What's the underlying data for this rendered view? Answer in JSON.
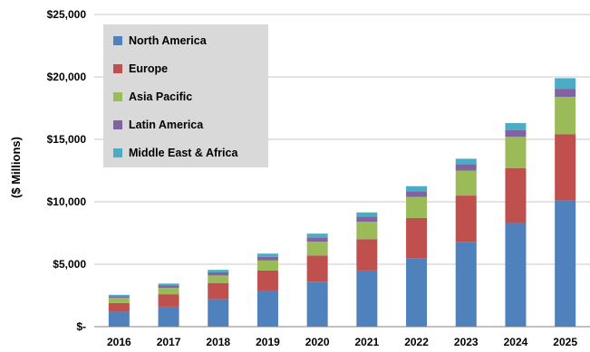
{
  "chart_data": {
    "type": "bar",
    "stacked": true,
    "title": "",
    "xlabel": "",
    "ylabel": "($ Millions)",
    "ylim": [
      0,
      25000
    ],
    "yticks": [
      0,
      5000,
      10000,
      15000,
      20000,
      25000
    ],
    "ytick_labels": [
      "$-",
      "$5,000",
      "$10,000",
      "$15,000",
      "$20,000",
      "$25,000"
    ],
    "grid": true,
    "legend_position": "top-left",
    "categories": [
      "2016",
      "2017",
      "2018",
      "2019",
      "2020",
      "2021",
      "2022",
      "2023",
      "2024",
      "2025"
    ],
    "series": [
      {
        "name": "North America",
        "color": "#4F81BD",
        "values": [
          1200,
          1600,
          2200,
          2900,
          3600,
          4500,
          5500,
          6800,
          8300,
          10100
        ]
      },
      {
        "name": "Europe",
        "color": "#C0504D",
        "values": [
          700,
          1000,
          1300,
          1600,
          2100,
          2500,
          3200,
          3700,
          4400,
          5300
        ]
      },
      {
        "name": "Asia Pacific",
        "color": "#9BBB59",
        "values": [
          400,
          500,
          600,
          800,
          1100,
          1400,
          1700,
          2000,
          2500,
          3000
        ]
      },
      {
        "name": "Latin America",
        "color": "#8064A2",
        "values": [
          150,
          200,
          250,
          300,
          350,
          400,
          450,
          500,
          550,
          650
        ]
      },
      {
        "name": "Middle East & Africa",
        "color": "#4BACC6",
        "values": [
          100,
          150,
          200,
          250,
          300,
          350,
          400,
          450,
          550,
          850
        ]
      }
    ]
  }
}
